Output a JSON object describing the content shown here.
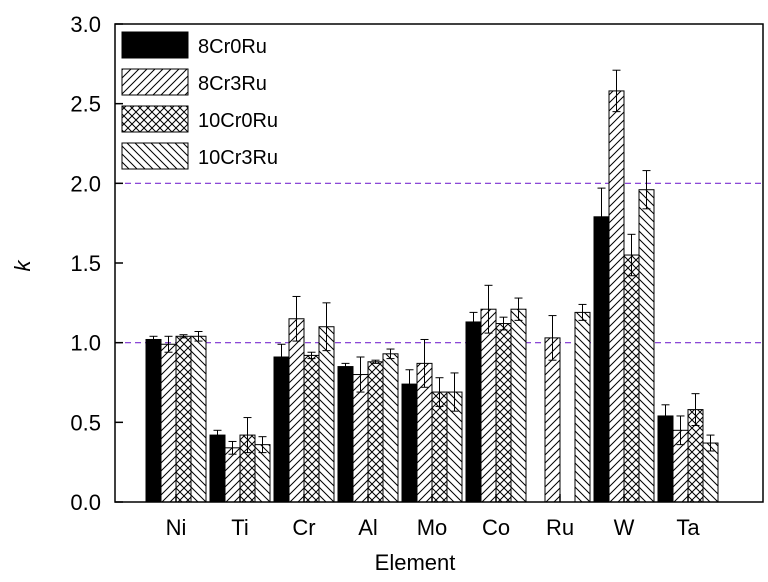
{
  "chart_data": {
    "type": "bar",
    "title": "",
    "xlabel": "Element",
    "ylabel": "k",
    "ylim": [
      0.0,
      3.0
    ],
    "yticks": [
      "0.0",
      "0.5",
      "1.0",
      "1.5",
      "2.0",
      "2.5",
      "3.0"
    ],
    "categories": [
      "Ni",
      "Ti",
      "Cr",
      "Al",
      "Mo",
      "Co",
      "Ru",
      "W",
      "Ta"
    ],
    "reference_lines": [
      1.0,
      2.0
    ],
    "reference_line_color": "#7b2fd0",
    "legend_position": "top-left",
    "series": [
      {
        "name": "8Cr0Ru",
        "pattern": "solid",
        "values": [
          1.02,
          0.42,
          0.91,
          0.85,
          0.74,
          1.13,
          null,
          1.79,
          0.54
        ],
        "errors": [
          0.02,
          0.03,
          0.08,
          0.02,
          0.09,
          0.06,
          null,
          0.18,
          0.07
        ]
      },
      {
        "name": "8Cr3Ru",
        "pattern": "diagonal",
        "values": [
          0.99,
          0.34,
          1.15,
          0.8,
          0.87,
          1.21,
          1.03,
          2.58,
          0.45
        ],
        "errors": [
          0.05,
          0.04,
          0.14,
          0.11,
          0.15,
          0.15,
          0.14,
          0.13,
          0.09
        ]
      },
      {
        "name": "10Cr0Ru",
        "pattern": "crosshatch",
        "values": [
          1.04,
          0.42,
          0.92,
          0.88,
          0.69,
          1.12,
          null,
          1.55,
          0.58
        ],
        "errors": [
          0.01,
          0.11,
          0.02,
          0.01,
          0.09,
          0.04,
          null,
          0.13,
          0.1
        ]
      },
      {
        "name": "10Cr3Ru",
        "pattern": "back-diagonal",
        "values": [
          1.04,
          0.36,
          1.1,
          0.93,
          0.69,
          1.21,
          1.19,
          1.96,
          0.37
        ],
        "errors": [
          0.03,
          0.05,
          0.15,
          0.03,
          0.12,
          0.07,
          0.05,
          0.12,
          0.05
        ]
      }
    ]
  }
}
